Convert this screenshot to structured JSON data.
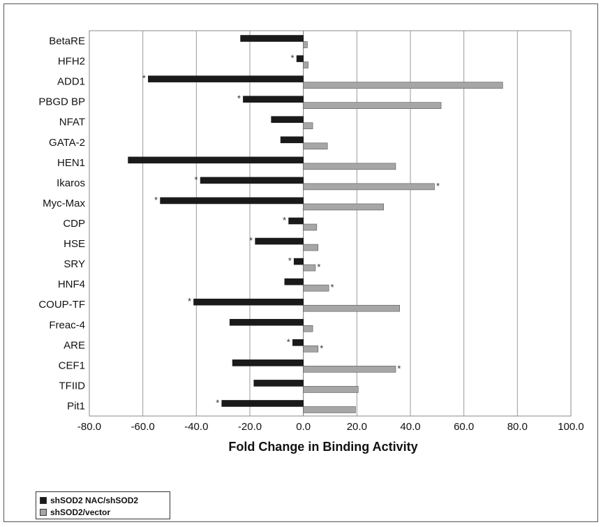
{
  "chart_data": {
    "type": "bar",
    "orientation": "horizontal",
    "xlabel": "Fold Change in Binding Activity",
    "ylabel": "",
    "xlim": [
      -80,
      100
    ],
    "xticks": [
      -80,
      -60,
      -40,
      -20,
      0,
      20,
      40,
      60,
      80,
      100
    ],
    "xtick_labels": [
      "-80.0",
      "-60.0",
      "-40.0",
      "-20.0",
      "0.0",
      "20.0",
      "40.0",
      "60.0",
      "80.0",
      "100.0"
    ],
    "grid": "vertical",
    "legend_position": "bottom-left",
    "categories": [
      "BetaRE",
      "HFH2",
      "ADD1",
      "PBGD BP",
      "NFAT",
      "GATA-2",
      "HEN1",
      "Ikaros",
      "Myc-Max",
      "CDP",
      "HSE",
      "SRY",
      "HNF4",
      "COUP-TF",
      "Freac-4",
      "ARE",
      "CEF1",
      "TFIID",
      "Pit1"
    ],
    "series": [
      {
        "name": "shSOD2 NAC/shSOD2",
        "color": "#1a1a1a",
        "values": [
          -23.5,
          -2.5,
          -58,
          -22.5,
          -12,
          -8.5,
          -65.5,
          -38.5,
          -53.5,
          -5.5,
          -18,
          -3.5,
          -7,
          -41,
          -27.5,
          -4,
          -26.5,
          -18.5,
          -30.5
        ],
        "significant": [
          false,
          true,
          true,
          true,
          false,
          false,
          false,
          true,
          true,
          true,
          true,
          true,
          false,
          true,
          false,
          true,
          false,
          false,
          true
        ]
      },
      {
        "name": "shSOD2/vector",
        "color": "#a6a6a6",
        "values": [
          1.5,
          1.8,
          74.5,
          51.5,
          3.5,
          9,
          34.5,
          49,
          30,
          5,
          5.5,
          4.5,
          9.5,
          36,
          3.5,
          5.5,
          34.5,
          20.5,
          19.5
        ],
        "significant": [
          false,
          false,
          false,
          false,
          false,
          false,
          false,
          true,
          false,
          false,
          false,
          true,
          true,
          false,
          false,
          true,
          true,
          false,
          false
        ]
      }
    ],
    "significance_marker": "*"
  }
}
